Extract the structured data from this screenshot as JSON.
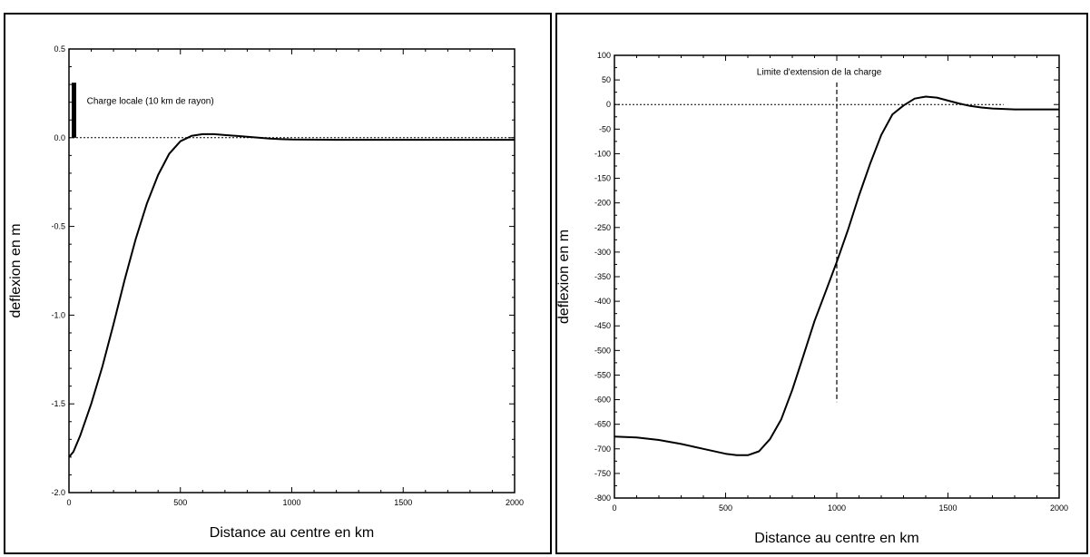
{
  "chart_data": [
    {
      "type": "line",
      "title": "",
      "xlabel": "Distance au centre en km",
      "ylabel": "deflexion en m",
      "xlim": [
        0,
        2000
      ],
      "ylim": [
        -2.0,
        0.5
      ],
      "xticks": [
        0,
        500,
        1000,
        1500,
        2000
      ],
      "xtick_labels": [
        "0",
        "500",
        "1000",
        "1500",
        "2000"
      ],
      "yticks": [
        -2.0,
        -1.5,
        -1.0,
        -0.5,
        0.0,
        0.5
      ],
      "ytick_labels": [
        "-2.0",
        "-1.5",
        "-1.0",
        "-0.5",
        "0.0",
        "0.5"
      ],
      "grid": false,
      "series": [
        {
          "x": [
            0,
            20,
            50,
            100,
            150,
            200,
            250,
            300,
            350,
            400,
            450,
            500,
            550,
            600,
            650,
            700,
            750,
            800,
            850,
            900,
            950,
            1000,
            1200,
            1500,
            2000
          ],
          "y": [
            -1.8,
            -1.77,
            -1.68,
            -1.5,
            -1.29,
            -1.05,
            -0.8,
            -0.57,
            -0.37,
            -0.21,
            -0.09,
            -0.02,
            0.01,
            0.02,
            0.02,
            0.015,
            0.01,
            0.005,
            0.0,
            -0.005,
            -0.008,
            -0.01,
            -0.012,
            -0.012,
            -0.012
          ]
        }
      ],
      "baseline_y": 0.0,
      "load_bar": {
        "x": 20,
        "y_top": 0.31,
        "y_bottom": 0.0
      },
      "annotations": [
        {
          "text": "Charge locale (10 km de rayon)",
          "x": 80,
          "y": 0.19
        }
      ]
    },
    {
      "type": "line",
      "title": "",
      "xlabel": "Distance au centre en km",
      "ylabel": "deflexion en m",
      "xlim": [
        0,
        2000
      ],
      "ylim": [
        -800,
        100
      ],
      "xticks": [
        0,
        500,
        1000,
        1500,
        2000
      ],
      "xtick_labels": [
        "0",
        "500",
        "1000",
        "1500",
        "2000"
      ],
      "yticks": [
        100,
        50,
        0,
        -50,
        -100,
        -150,
        -200,
        -250,
        -300,
        -350,
        -400,
        -450,
        -500,
        -550,
        -600,
        -650,
        -700,
        -750,
        -800
      ],
      "ytick_labels": [
        "100",
        "50",
        "0",
        "-50",
        "-100",
        "-150",
        "-200",
        "-250",
        "-300",
        "-350",
        "-400",
        "-450",
        "-500",
        "-550",
        "-600",
        "-650",
        "-700",
        "-750",
        "-800"
      ],
      "grid": false,
      "series": [
        {
          "x": [
            0,
            100,
            200,
            300,
            400,
            500,
            550,
            600,
            650,
            700,
            750,
            800,
            850,
            900,
            950,
            1000,
            1050,
            1100,
            1150,
            1200,
            1250,
            1300,
            1350,
            1400,
            1450,
            1500,
            1550,
            1600,
            1650,
            1700,
            1800,
            1900,
            2000
          ],
          "y": [
            -675,
            -677,
            -682,
            -690,
            -700,
            -710,
            -713,
            -713,
            -705,
            -680,
            -640,
            -580,
            -510,
            -440,
            -380,
            -320,
            -255,
            -185,
            -120,
            -62,
            -20,
            -2,
            12,
            16,
            14,
            8,
            2,
            -3,
            -6,
            -8,
            -10,
            -10,
            -10
          ]
        }
      ],
      "baseline_y": 0,
      "baseline_x_end": 1750,
      "limit_line": {
        "x": 1000,
        "y_top": 45,
        "y_bottom": -605
      },
      "annotations": [
        {
          "text": "Limite d'extension de la charge",
          "x": 640,
          "y": 60
        }
      ]
    }
  ]
}
